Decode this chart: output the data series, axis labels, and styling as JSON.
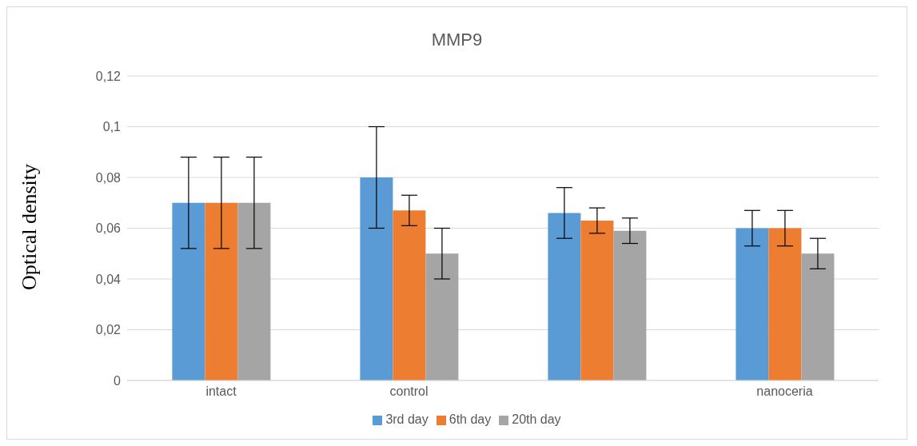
{
  "chart_data": {
    "type": "bar",
    "title": "MMP9",
    "ylabel": "Optical density",
    "categories": [
      "intact",
      "control",
      null,
      "nanoceria"
    ],
    "series": [
      {
        "name": "3rd day",
        "color": "#5b9bd5",
        "values": [
          0.07,
          0.08,
          0.066,
          0.06
        ],
        "errors": [
          0.018,
          0.02,
          0.01,
          0.007
        ]
      },
      {
        "name": "6th day",
        "color": "#ed7d31",
        "values": [
          0.07,
          0.067,
          0.063,
          0.06
        ],
        "errors": [
          0.018,
          0.006,
          0.005,
          0.007
        ]
      },
      {
        "name": "20th day",
        "color": "#a5a5a5",
        "values": [
          0.07,
          0.05,
          0.059,
          0.05
        ],
        "errors": [
          0.018,
          0.01,
          0.005,
          0.006
        ]
      }
    ],
    "ylim": [
      0,
      0.12
    ],
    "yticks": [
      {
        "value": 0,
        "label": "0"
      },
      {
        "value": 0.02,
        "label": "0,02"
      },
      {
        "value": 0.04,
        "label": "0,04"
      },
      {
        "value": 0.06,
        "label": "0,06"
      },
      {
        "value": 0.08,
        "label": "0,08"
      },
      {
        "value": 0.1,
        "label": "0,1"
      },
      {
        "value": 0.12,
        "label": "0,12"
      }
    ],
    "grid": "y",
    "legend": "bottom"
  }
}
